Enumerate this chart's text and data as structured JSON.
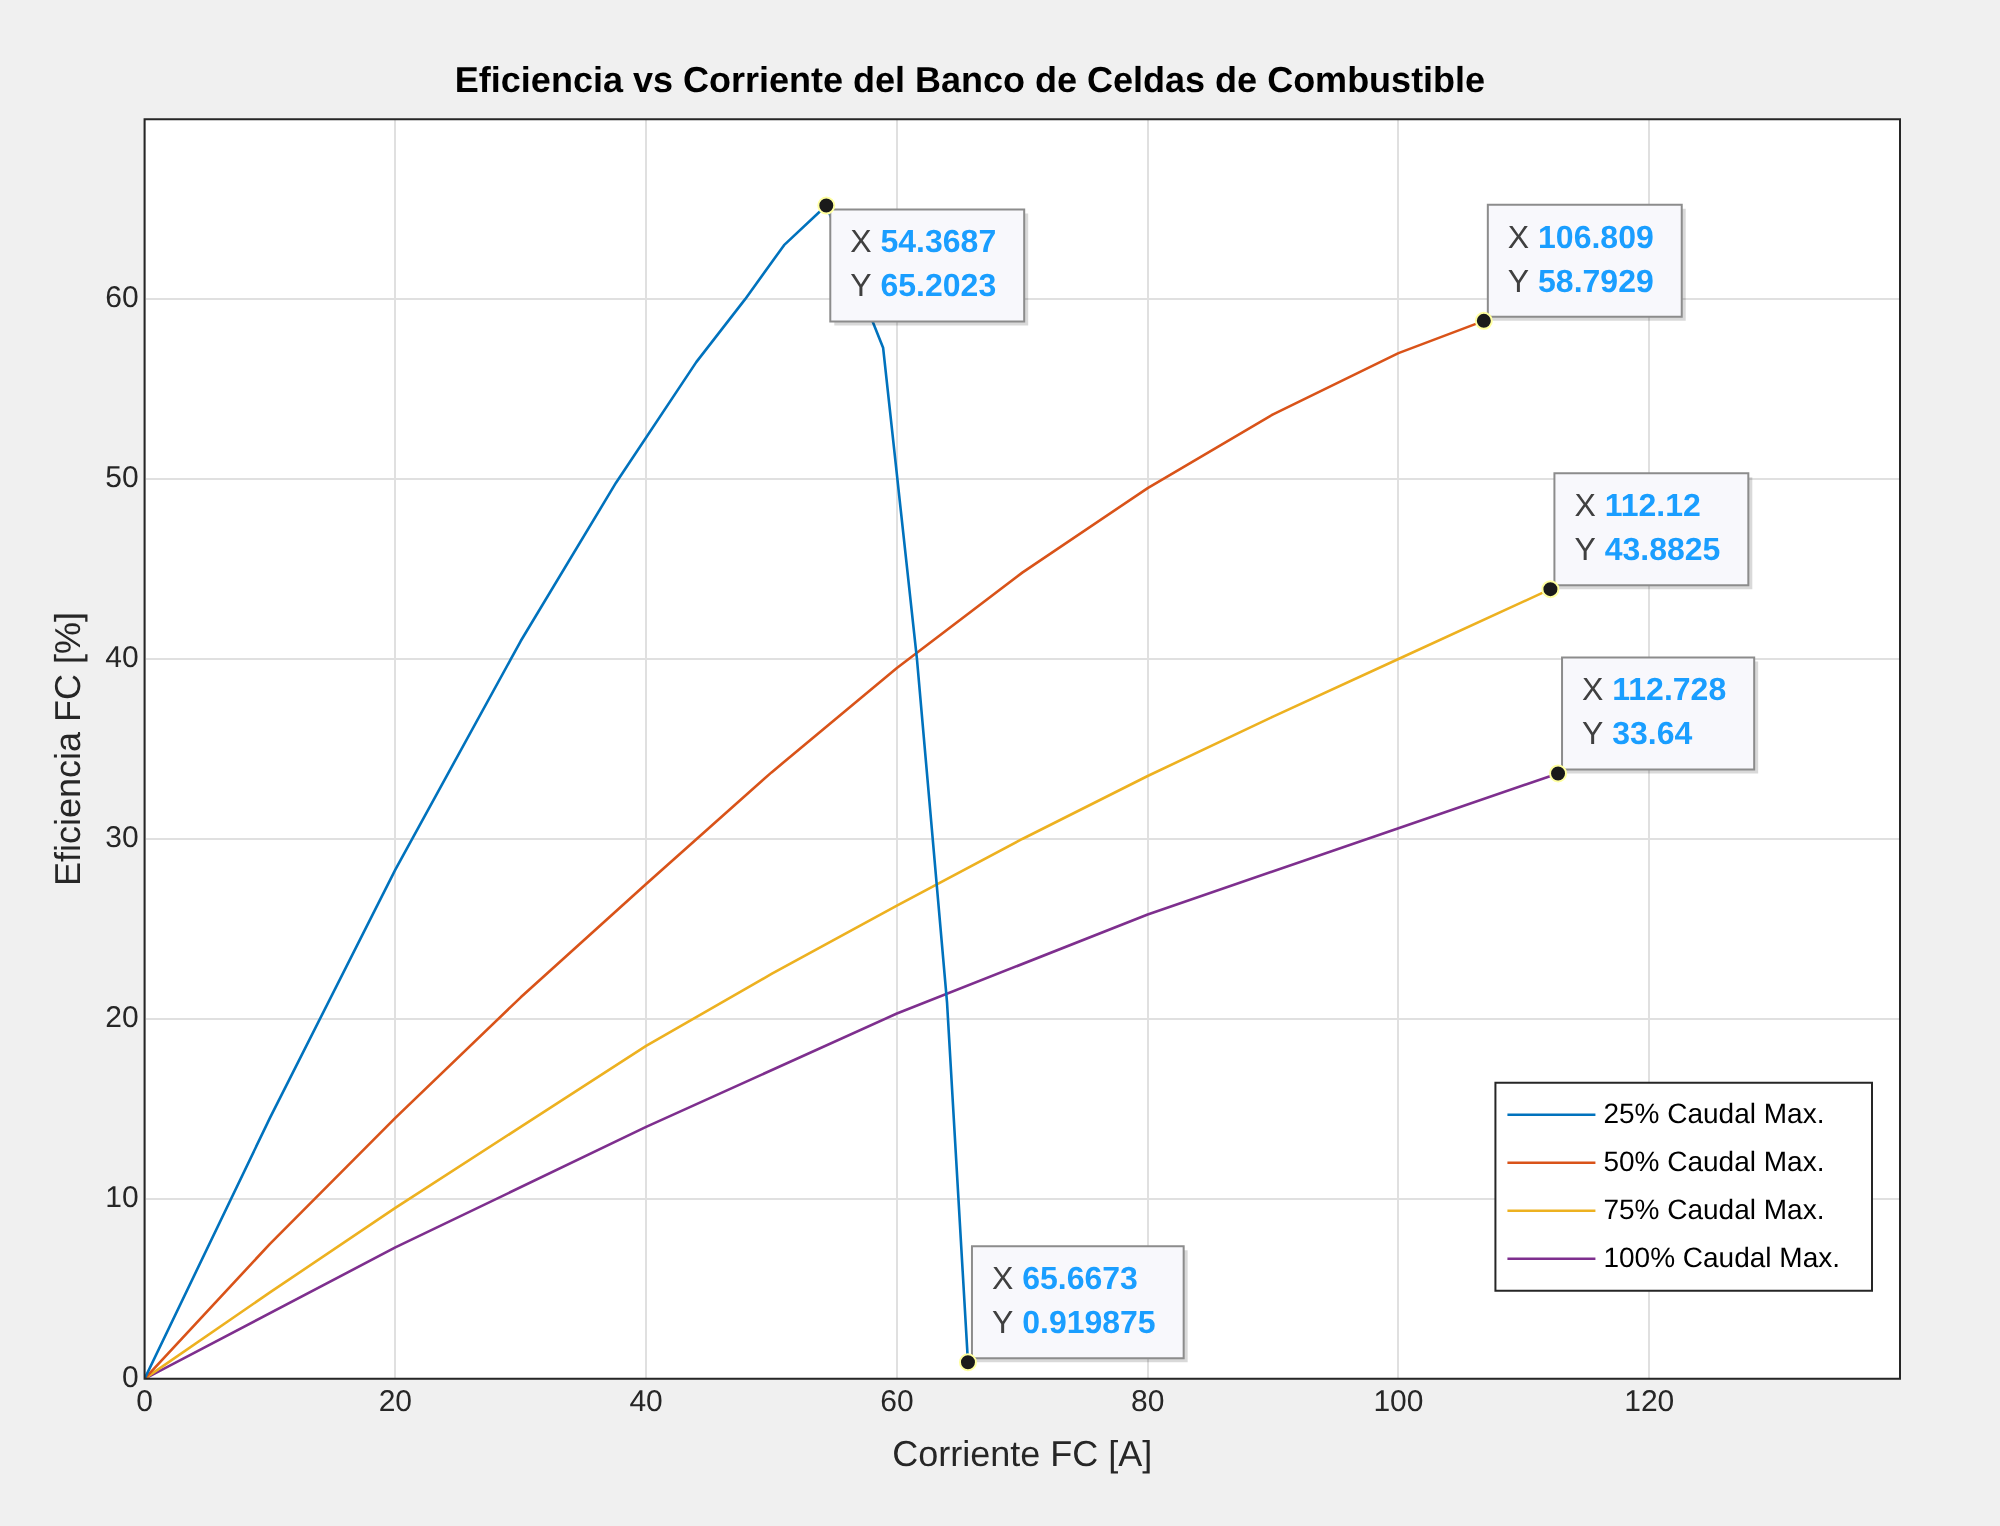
{
  "chart_data": {
    "type": "line",
    "title": "Eficiencia vs Corriente del Banco de Celdas de Combustible",
    "xlabel": "Corriente FC [A]",
    "ylabel": "Eficiencia FC [%]",
    "xlim": [
      0,
      140
    ],
    "xticks": [
      0,
      20,
      40,
      60,
      80,
      100,
      120
    ],
    "ylim": [
      0,
      70
    ],
    "yticks": [
      0,
      10,
      20,
      30,
      40,
      50,
      60
    ],
    "grid": true,
    "legend": "bottom right",
    "marker": "none",
    "line_style": "solid",
    "series": [
      {
        "name": "25% Caudal Max.",
        "color": "#0072bd",
        "x": [
          0,
          10,
          20,
          30,
          37.6,
          44,
          47.9,
          51,
          54.3687,
          58.9,
          61.6,
          64,
          65.6673
        ],
        "values": [
          0,
          14.5,
          28.3,
          41,
          49.8,
          56.5,
          60,
          63,
          65.2023,
          57.3,
          40,
          20.9,
          0.919875
        ]
      },
      {
        "name": "50% Caudal Max.",
        "color": "#d95319",
        "x": [
          0,
          10,
          20,
          30,
          40,
          50,
          60,
          70,
          80,
          90,
          100,
          106.809
        ],
        "values": [
          0,
          7.5,
          14.5,
          21.2,
          27.5,
          33.7,
          39.5,
          44.8,
          49.5,
          53.6,
          57,
          58.7929
        ]
      },
      {
        "name": "75% Caudal Max.",
        "color": "#edb120",
        "x": [
          0,
          10,
          20,
          30,
          40,
          50,
          60,
          70,
          80,
          90,
          100,
          112.12
        ],
        "values": [
          0,
          4.8,
          9.5,
          14,
          18.5,
          22.5,
          26.3,
          30,
          33.5,
          36.8,
          40,
          43.8825
        ]
      },
      {
        "name": "100% Caudal Max.",
        "color": "#7e2f8e",
        "x": [
          0,
          20,
          40,
          60,
          80,
          100,
          112.728
        ],
        "values": [
          0,
          7.3,
          14,
          20.3,
          25.8,
          30.6,
          33.64
        ]
      }
    ],
    "annotations": [
      {
        "text": "X 54.3687\nY 65.2023",
        "x": 54.3687,
        "y": 65.2023
      },
      {
        "text": "X 106.809\nY 58.7929",
        "x": 106.809,
        "y": 58.7929
      },
      {
        "text": "X 112.12\nY 43.8825",
        "x": 112.12,
        "y": 43.8825
      },
      {
        "text": "X 112.728\nY 33.64",
        "x": 112.728,
        "y": 33.64
      },
      {
        "text": "X 65.6673\nY 0.919875",
        "x": 65.6673,
        "y": 0.919875
      }
    ]
  }
}
